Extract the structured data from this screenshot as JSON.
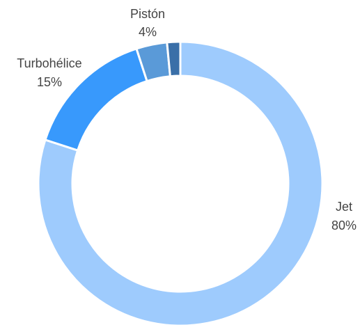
{
  "chart_data": {
    "type": "pie",
    "style": "donut",
    "title": "",
    "slices": [
      {
        "name": "Jet",
        "value": 80,
        "label": "80%",
        "color": "#9ecbfd"
      },
      {
        "name": "Turbohélice",
        "value": 15,
        "label": "15%",
        "color": "#3899fc"
      },
      {
        "name": "Pistón",
        "value": 3.5,
        "label": "4%",
        "color": "#5a9ad8"
      },
      {
        "name": "",
        "value": 1.5,
        "label": "",
        "color": "#3a6fa8"
      }
    ]
  }
}
